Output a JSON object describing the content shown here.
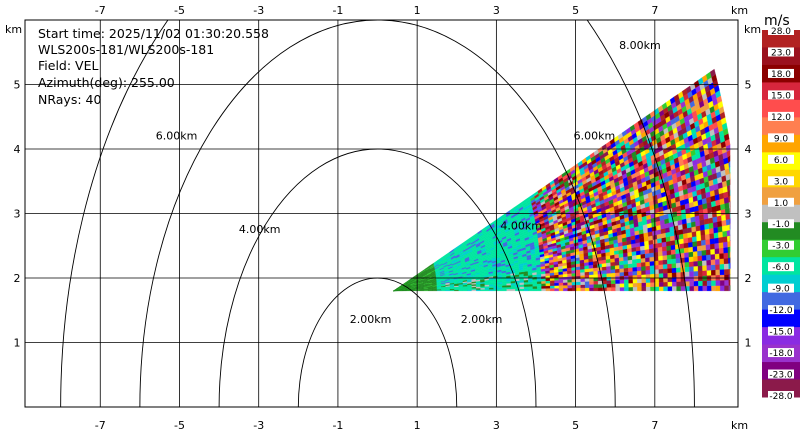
{
  "chart_data": {
    "type": "heatmap",
    "info": {
      "start_time": "Start time: 2025/11/02 01:30:20.558",
      "instrument": "WLS200s-181/WLS200s-181",
      "field": "Field: VEL",
      "azimuth": "Azimuth(deg): 255.00",
      "nrays": "NRays: 40"
    },
    "x_unit": "km",
    "y_unit": "km",
    "xlim": [
      -8.9,
      9.1
    ],
    "ylim": [
      0,
      6
    ],
    "x_ticks": [
      -7,
      -5,
      -3,
      -1,
      1,
      3,
      5,
      7
    ],
    "y_ticks": [
      1,
      2,
      3,
      4,
      5
    ],
    "grid": true,
    "range_rings_km": [
      2,
      4,
      6,
      8
    ],
    "range_ring_labels": [
      {
        "text": "2.00km",
        "x": -0.7,
        "y": 1.3
      },
      {
        "text": "2.00km",
        "x": 2.1,
        "y": 1.3
      },
      {
        "text": "4.00km",
        "x": -3.5,
        "y": 2.7
      },
      {
        "text": "4.00km",
        "x": 3.1,
        "y": 2.75
      },
      {
        "text": "6.00km",
        "x": -5.6,
        "y": 4.15
      },
      {
        "text": "6.00km",
        "x": 4.95,
        "y": 4.15
      },
      {
        "text": "8.00km",
        "x": 6.1,
        "y": 5.55
      }
    ],
    "sector": {
      "origin_x_km": 0.4,
      "origin_y_km": 1.8,
      "elevation_start_deg": 0,
      "elevation_end_deg": 23,
      "nrays": 40,
      "max_range_km": 8.8
    },
    "colorbar": {
      "unit": "m/s",
      "labels": [
        "28.0",
        "23.0",
        "18.0",
        "15.0",
        "12.0",
        "9.0",
        "6.0",
        "3.0",
        "1.0",
        "-1.0",
        "-3.0",
        "-6.0",
        "-9.0",
        "-12.0",
        "-15.0",
        "-18.0",
        "-23.0",
        "-28.0"
      ],
      "colors": [
        "#b22222",
        "#9b111e",
        "#8b0000",
        "#d7263d",
        "#ff4d4d",
        "#ff7f50",
        "#ffa500",
        "#ffff00",
        "#ffd700",
        "#f0a040",
        "#c0c0c0",
        "#228b22",
        "#32cd32",
        "#00e5a0",
        "#00ced1",
        "#4169e1",
        "#0000ff",
        "#8a2be2",
        "#9932cc",
        "#800080",
        "#8b1a4a"
      ]
    }
  }
}
